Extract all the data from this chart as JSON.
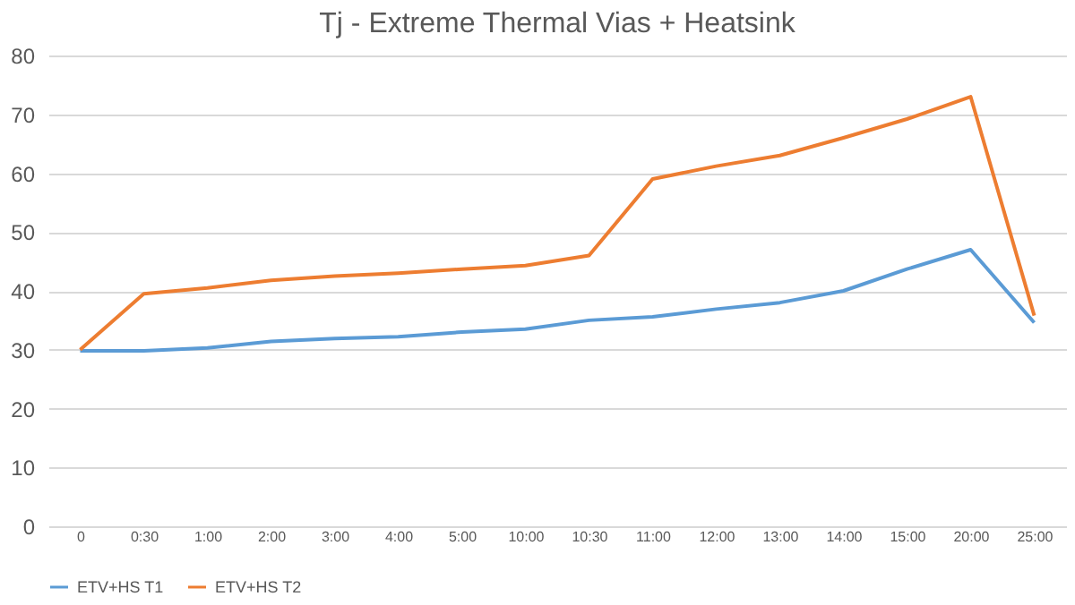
{
  "chart_data": {
    "type": "line",
    "title": "Tj - Extreme Thermal Vias + Heatsink",
    "categories": [
      "0",
      "0:30",
      "1:00",
      "2:00",
      "3:00",
      "4:00",
      "5:00",
      "10:00",
      "10:30",
      "11:00",
      "12:00",
      "13:00",
      "14:00",
      "15:00",
      "20:00",
      "25:00"
    ],
    "series": [
      {
        "name": "ETV+HS T1",
        "color": "#5b9bd5",
        "values": [
          29.8,
          29.8,
          30.3,
          31.4,
          31.9,
          32.2,
          33,
          33.5,
          35,
          35.6,
          36.9,
          38,
          40,
          43.7,
          47,
          34.6
        ]
      },
      {
        "name": "ETV+HS T2",
        "color": "#ed7d31",
        "values": [
          30,
          39.5,
          40.5,
          41.8,
          42.5,
          43,
          43.7,
          44.3,
          46,
          59,
          61.2,
          63,
          66,
          69.2,
          73,
          35.8
        ]
      }
    ],
    "ylim": [
      0,
      80
    ],
    "yticks": [
      0,
      10,
      20,
      30,
      40,
      50,
      60,
      70,
      80
    ],
    "grid": "y",
    "legend": "bottom",
    "marker": "none",
    "line_style": "solid"
  }
}
